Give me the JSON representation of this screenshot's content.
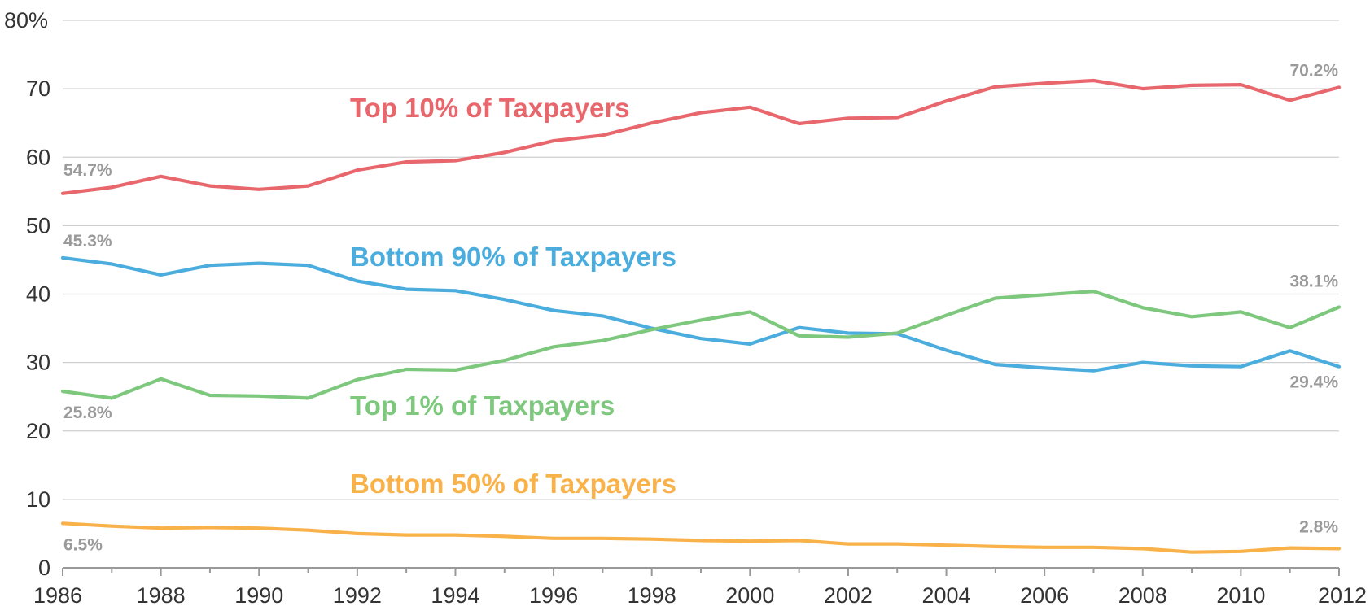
{
  "chart_data": {
    "type": "line",
    "title": "",
    "xlabel": "",
    "ylabel": "",
    "xlim": [
      1986,
      2012
    ],
    "ylim": [
      0,
      80
    ],
    "x_ticks": [
      1986,
      1988,
      1990,
      1992,
      1994,
      1996,
      1998,
      2000,
      2002,
      2004,
      2006,
      2008,
      2010,
      2012
    ],
    "y_ticks": [
      {
        "value": 0,
        "label": "0"
      },
      {
        "value": 10,
        "label": "10"
      },
      {
        "value": 20,
        "label": "20"
      },
      {
        "value": 30,
        "label": "30"
      },
      {
        "value": 40,
        "label": "40"
      },
      {
        "value": 50,
        "label": "50"
      },
      {
        "value": 60,
        "label": "60"
      },
      {
        "value": 70,
        "label": "70"
      },
      {
        "value": 80,
        "label": "80%"
      }
    ],
    "grid": "horizontal",
    "legend": "inline",
    "x": [
      1986,
      1987,
      1988,
      1989,
      1990,
      1991,
      1992,
      1993,
      1994,
      1995,
      1996,
      1997,
      1998,
      1999,
      2000,
      2001,
      2002,
      2003,
      2004,
      2005,
      2006,
      2007,
      2008,
      2009,
      2010,
      2011,
      2012
    ],
    "series": [
      {
        "key": "top10",
        "name": "Top 10% of Taxpayers",
        "color": "#e8676d",
        "values": [
          54.7,
          55.6,
          57.2,
          55.8,
          55.3,
          55.8,
          58.1,
          59.3,
          59.5,
          60.7,
          62.4,
          63.2,
          65.0,
          66.5,
          67.3,
          64.9,
          65.7,
          65.8,
          68.2,
          70.3,
          70.8,
          71.2,
          70.0,
          70.5,
          70.6,
          68.3,
          70.2
        ],
        "start_label": "54.7%",
        "end_label": "70.2%"
      },
      {
        "key": "bottom90",
        "name": "Bottom 90% of Taxpayers",
        "color": "#4badde",
        "values": [
          45.3,
          44.4,
          42.8,
          44.2,
          44.5,
          44.2,
          41.9,
          40.7,
          40.5,
          39.2,
          37.6,
          36.8,
          35.0,
          33.5,
          32.7,
          35.1,
          34.3,
          34.2,
          31.8,
          29.7,
          29.2,
          28.8,
          30.0,
          29.5,
          29.4,
          31.7,
          29.4
        ],
        "start_label": "45.3%",
        "end_label": "29.4%"
      },
      {
        "key": "top1",
        "name": "Top 1% of Taxpayers",
        "color": "#7ec87e",
        "values": [
          25.8,
          24.8,
          27.6,
          25.2,
          25.1,
          24.8,
          27.5,
          29.0,
          28.9,
          30.3,
          32.3,
          33.2,
          34.8,
          36.2,
          37.4,
          33.9,
          33.7,
          34.3,
          36.9,
          39.4,
          39.9,
          40.4,
          38.0,
          36.7,
          37.4,
          35.1,
          38.1
        ],
        "start_label": "25.8%",
        "end_label": "38.1%"
      },
      {
        "key": "bottom50",
        "name": "Bottom 50% of Taxpayers",
        "color": "#f9b24a",
        "values": [
          6.5,
          6.1,
          5.8,
          5.9,
          5.8,
          5.5,
          5.0,
          4.8,
          4.8,
          4.6,
          4.3,
          4.3,
          4.2,
          4.0,
          3.9,
          4.0,
          3.5,
          3.5,
          3.3,
          3.1,
          3.0,
          3.0,
          2.8,
          2.3,
          2.4,
          2.9,
          2.8
        ],
        "start_label": "6.5%",
        "end_label": "2.8%"
      }
    ]
  }
}
